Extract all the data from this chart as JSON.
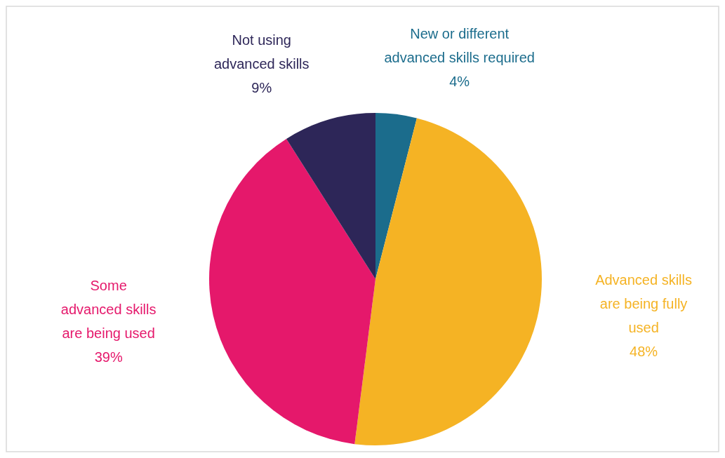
{
  "chart_data": {
    "type": "pie",
    "categories": [
      "New or different\nadvanced skills required",
      "Advanced skills\nare being fully\nused",
      "Some\nadvanced skills\nare being used",
      "Not using\nadvanced skills"
    ],
    "values": [
      4,
      48,
      39,
      9
    ],
    "colors": [
      "#1b6c8c",
      "#f5b324",
      "#e5186b",
      "#2d2658"
    ],
    "value_labels": [
      "4%",
      "48%",
      "39%",
      "9%"
    ]
  }
}
